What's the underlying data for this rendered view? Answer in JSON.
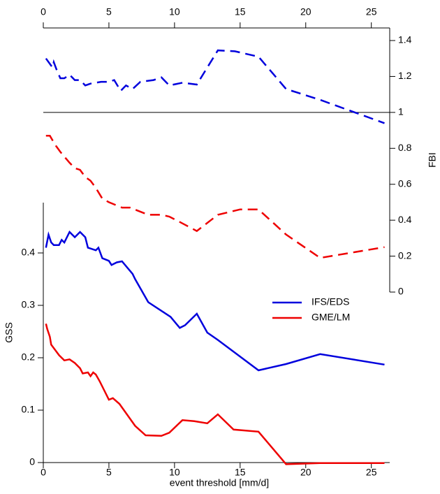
{
  "chart_data": {
    "type": "line",
    "xlabel": "event threshold  [mm/d]",
    "ylabel": "GSS",
    "y2label": "FBI",
    "xlim": [
      0,
      26.4
    ],
    "xticks": [
      0,
      5,
      10,
      15,
      20,
      25
    ],
    "ylim": [
      0,
      0.496
    ],
    "yticks": [
      0,
      0.1,
      0.2,
      0.3,
      0.4
    ],
    "y2lim": [
      0,
      1.47
    ],
    "y2ticks": [
      0,
      0.2,
      0.4,
      0.6,
      0.8,
      1,
      1.2,
      1.4
    ],
    "y2_reference": 1,
    "series": [
      {
        "name": "IFS/EDS",
        "color": "#0000dd",
        "x": [
          0.2,
          0.4,
          0.6,
          0.8,
          1.2,
          1.4,
          1.6,
          2,
          2.4,
          2.8,
          3.2,
          3.4,
          4,
          4.2,
          4.5,
          5,
          5.2,
          5.6,
          6,
          6.8,
          7,
          8,
          9.7,
          10.4,
          10.8,
          11.7,
          12.5,
          13.3,
          16.4,
          18.5,
          21.1,
          26
        ],
        "values": [
          0.41,
          0.435,
          0.42,
          0.415,
          0.415,
          0.425,
          0.42,
          0.44,
          0.43,
          0.44,
          0.43,
          0.41,
          0.405,
          0.41,
          0.39,
          0.385,
          0.377,
          0.382,
          0.384,
          0.36,
          0.35,
          0.306,
          0.278,
          0.257,
          0.262,
          0.284,
          0.248,
          0.234,
          0.176,
          0.188,
          0.207,
          0.187
        ],
        "fbi": {
          "x": [
            0.2,
            0.5,
            0.7,
            0.8,
            1,
            1.3,
            1.6,
            2,
            2.4,
            2.8,
            3.2,
            3.6,
            4.4,
            5,
            5.4,
            5.9,
            6.3,
            6.8,
            7.4,
            8.4,
            9,
            9.6,
            10.6,
            11.7,
            13.3,
            14.6,
            16.4,
            18.5,
            21.1,
            26
          ],
          "values": [
            1.3,
            1.27,
            1.25,
            1.28,
            1.24,
            1.19,
            1.19,
            1.21,
            1.18,
            1.18,
            1.15,
            1.16,
            1.17,
            1.17,
            1.18,
            1.12,
            1.15,
            1.13,
            1.17,
            1.18,
            1.195,
            1.15,
            1.165,
            1.155,
            1.345,
            1.34,
            1.31,
            1.13,
            1.07,
            0.94
          ]
        }
      },
      {
        "name": "GME/LM",
        "color": "#ee0000",
        "x": [
          0.2,
          0.3,
          0.5,
          0.6,
          0.9,
          1.2,
          1.6,
          2,
          2.4,
          2.8,
          3,
          3.4,
          3.6,
          3.8,
          4,
          4.3,
          4.6,
          5,
          5.3,
          5.8,
          7,
          7.8,
          9,
          9.6,
          10.6,
          11.5,
          12.5,
          13.3,
          14.5,
          16.4,
          18.5,
          21.1,
          26
        ],
        "values": [
          0.265,
          0.255,
          0.24,
          0.225,
          0.215,
          0.205,
          0.195,
          0.197,
          0.19,
          0.18,
          0.17,
          0.172,
          0.165,
          0.172,
          0.168,
          0.155,
          0.14,
          0.12,
          0.123,
          0.112,
          0.07,
          0.052,
          0.051,
          0.057,
          0.081,
          0.079,
          0.075,
          0.092,
          0.063,
          0.059,
          -0.003,
          -0.001,
          -0.001
        ],
        "fbi": {
          "x": [
            0.2,
            0.5,
            0.9,
            1.3,
            2,
            2.4,
            2.8,
            3.2,
            3.6,
            4,
            4.5,
            5,
            6,
            6.6,
            8,
            9,
            9.6,
            10.4,
            11.7,
            13.3,
            15,
            16.4,
            18.5,
            21.1,
            26
          ],
          "values": [
            0.87,
            0.87,
            0.82,
            0.78,
            0.72,
            0.69,
            0.68,
            0.64,
            0.62,
            0.58,
            0.52,
            0.5,
            0.47,
            0.47,
            0.43,
            0.43,
            0.42,
            0.39,
            0.34,
            0.43,
            0.46,
            0.46,
            0.32,
            0.19,
            0.25
          ]
        }
      }
    ]
  }
}
